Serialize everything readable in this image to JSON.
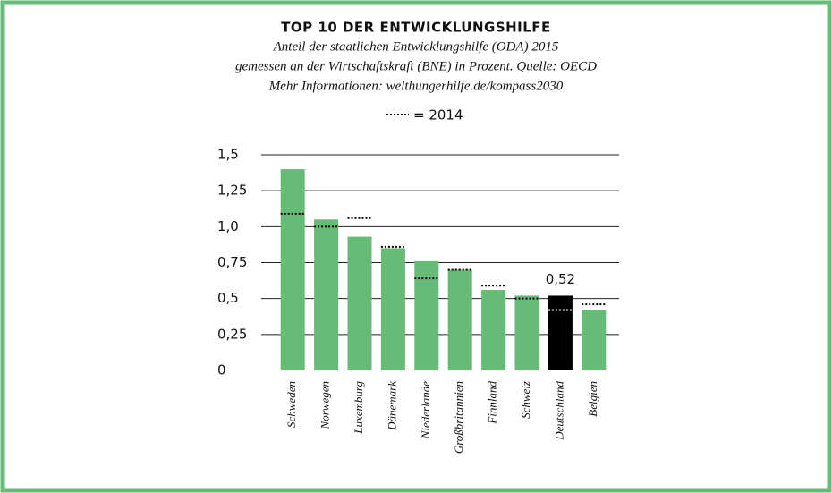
{
  "chart_data": {
    "type": "bar",
    "title": "TOP 10 DER ENTWICKLUNGSHILFE",
    "subtitle": [
      "Anteil der staatlichen Entwicklungshilfe (ODA) 2015",
      "gemessen an der Wirtschaftskraft (BNE) in Prozent. Quelle: OECD",
      "Mehr Informationen: welthungerhilfe.de/kompass2030"
    ],
    "categories": [
      "Schweden",
      "Norwegen",
      "Luxemburg",
      "Dänemark",
      "Niederlande",
      "Großbritannien",
      "Finnland",
      "Schweiz",
      "Deutschland",
      "Belgien"
    ],
    "series": [
      {
        "values": [
          1.4,
          1.05,
          0.93,
          0.85,
          0.76,
          0.7,
          0.56,
          0.52,
          0.52,
          0.42
        ],
        "colors": [
          "#66bb77",
          "#66bb77",
          "#66bb77",
          "#66bb77",
          "#66bb77",
          "#66bb77",
          "#66bb77",
          "#66bb77",
          "#000000",
          "#66bb77"
        ],
        "value_labels": [
          null,
          null,
          null,
          null,
          null,
          null,
          null,
          null,
          "0,52",
          null
        ]
      },
      {
        "name": "= 2014",
        "style": "dotted",
        "values": [
          1.09,
          1.0,
          1.06,
          0.86,
          0.64,
          0.7,
          0.59,
          0.5,
          0.42,
          0.46
        ],
        "colors": [
          "#000000",
          "#000000",
          "#000000",
          "#000000",
          "#000000",
          "#000000",
          "#000000",
          "#000000",
          "#ffffff",
          "#000000"
        ]
      }
    ],
    "ylim": [
      0,
      1.5
    ],
    "yticks": [
      0,
      {
        "value": 0.25,
        "label": "0,25"
      },
      {
        "value": 0.5,
        "label": "0,5"
      },
      {
        "value": 0.75,
        "label": "0,75"
      },
      {
        "value": 1.0,
        "label": "1,0"
      },
      {
        "value": 1.25,
        "label": "1,25"
      },
      {
        "value": 1.5,
        "label": "1,5"
      }
    ],
    "grid": true
  }
}
